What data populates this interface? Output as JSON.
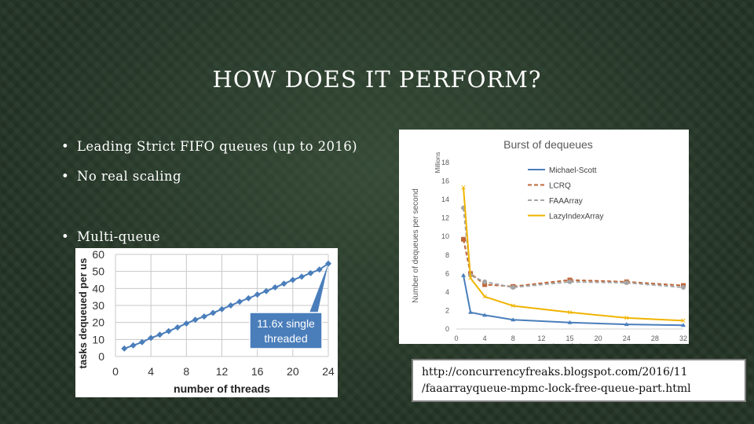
{
  "slide": {
    "title": "HOW DOES IT PERFORM?",
    "bullets": [
      {
        "label": "Leading Strict FIFO queues (up to 2016)"
      },
      {
        "label": "No real scaling"
      },
      {
        "label": "Multi-queue"
      }
    ],
    "bullet_glyph": "•",
    "url_line1": "http://concurrencyfreaks.blogspot.com/2016/11",
    "url_line2": "/faaarrayqueue-mpmc-lock-free-queue-part.html"
  },
  "chart_data": [
    {
      "type": "line",
      "title": "",
      "xlabel": "number of threads",
      "ylabel": "tasks dequeued per us",
      "xlim": [
        0,
        24
      ],
      "ylim": [
        0,
        60
      ],
      "xticks": [
        0,
        4,
        8,
        12,
        16,
        20,
        24
      ],
      "yticks": [
        0,
        10,
        20,
        30,
        40,
        50,
        60
      ],
      "grid": true,
      "series": [
        {
          "x": [
            1,
            2,
            3,
            4,
            5,
            6,
            7,
            8,
            9,
            10,
            11,
            12,
            13,
            14,
            15,
            16,
            17,
            18,
            19,
            20,
            21,
            22,
            23,
            24
          ],
          "values": [
            4.7,
            6.5,
            8.4,
            10.9,
            12.8,
            14.9,
            17.1,
            19.4,
            21.6,
            23.5,
            25.6,
            27.8,
            30.0,
            32.2,
            34.2,
            36.4,
            38.4,
            40.6,
            42.8,
            45.0,
            46.9,
            49.0,
            51.1,
            54.6
          ]
        }
      ],
      "annotation": "11.6x single threaded",
      "color": "#4a7ebb"
    },
    {
      "type": "line",
      "title": "Burst of dequeues",
      "xlabel": "Number of Threads",
      "ylabel": "Number of dequeues per second",
      "unit_label": "Millions",
      "xlim": [
        0,
        32
      ],
      "ylim": [
        0,
        18
      ],
      "x": [
        1,
        2,
        4,
        8,
        16,
        24,
        32
      ],
      "xticks": [
        0,
        4,
        8,
        12,
        16,
        20,
        24,
        28,
        32
      ],
      "xtick_labels": [
        "0",
        "4",
        "8",
        "12",
        "15",
        "20",
        "24",
        "28",
        "32"
      ],
      "yticks": [
        0,
        2,
        4,
        6,
        8,
        10,
        12,
        14,
        16,
        18
      ],
      "legend": "top-right",
      "series": [
        {
          "name": "Michael-Scott",
          "values": [
            5.8,
            1.8,
            1.5,
            1.0,
            0.7,
            0.5,
            0.4
          ],
          "color": "#4a7ebb"
        },
        {
          "name": "LCRQ",
          "values": [
            9.7,
            6.0,
            4.8,
            4.6,
            5.3,
            5.1,
            4.7
          ],
          "color": "#c0673a"
        },
        {
          "name": "FAAArray",
          "values": [
            13.1,
            5.8,
            5.1,
            4.5,
            5.1,
            5.0,
            4.5
          ],
          "color": "#a5a5a5"
        },
        {
          "name": "LazyIndexArray",
          "values": [
            15.3,
            5.5,
            3.5,
            2.5,
            1.8,
            1.2,
            0.9
          ],
          "color": "#f0b400"
        }
      ]
    }
  ]
}
